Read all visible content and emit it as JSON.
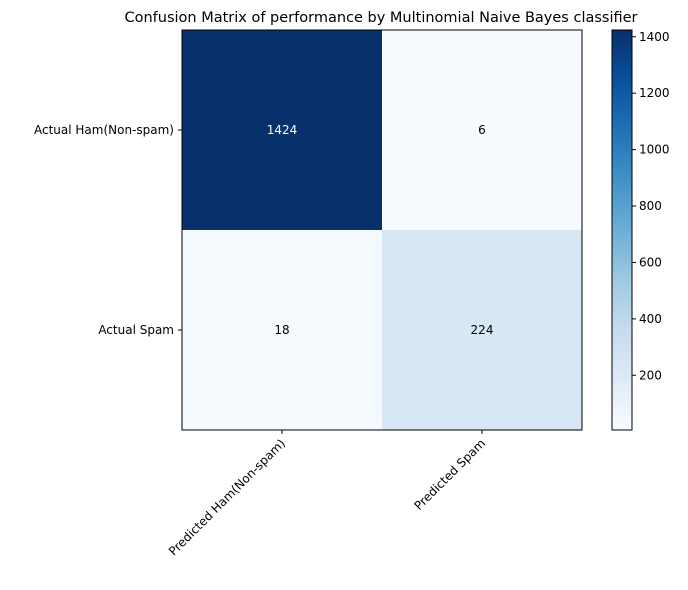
{
  "chart_data": {
    "type": "heatmap",
    "title": "Confusion Matrix of performance by Multinomial Naive Bayes classifier",
    "row_labels": [
      "Actual Ham(Non-spam)",
      "Actual Spam"
    ],
    "col_labels": [
      "Predicted Ham(Non-spam)",
      "Predicted Spam"
    ],
    "values": [
      [
        1424,
        6
      ],
      [
        18,
        224
      ]
    ],
    "value_labels": [
      [
        "1424",
        "6"
      ],
      [
        "18",
        "224"
      ]
    ],
    "colormap": "Blues",
    "color_range": [
      6,
      1424
    ],
    "colorbar_ticks": [
      200,
      400,
      600,
      800,
      1000,
      1200,
      1400
    ],
    "colorbar_tick_labels": [
      "200",
      "400",
      "600",
      "800",
      "1000",
      "1200",
      "1400"
    ]
  }
}
